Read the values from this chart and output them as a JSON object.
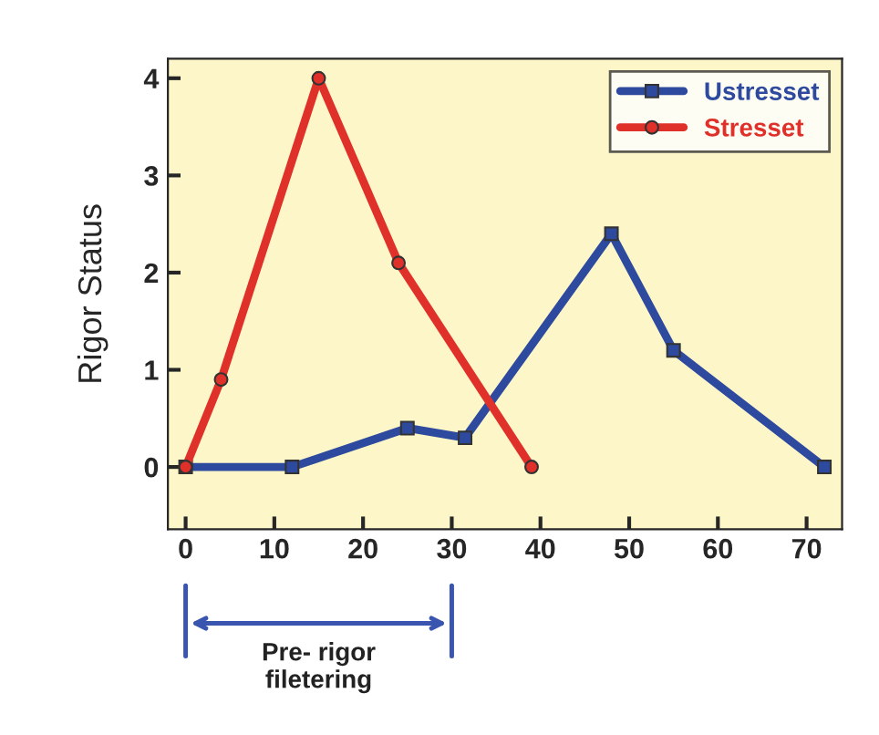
{
  "chart_data": {
    "type": "line",
    "ylabel": "Rigor Status",
    "xlim": [
      -2,
      74
    ],
    "ylim": [
      -0.64,
      4.2
    ],
    "xticks": [
      0,
      10,
      20,
      30,
      40,
      50,
      60,
      70
    ],
    "yticks": [
      0,
      1,
      2,
      3,
      4
    ],
    "series": [
      {
        "name": "Ustresset",
        "color": "#2e4a9e",
        "marker": "square",
        "x": [
          0,
          12,
          25,
          31.5,
          48,
          55,
          72
        ],
        "values": [
          0,
          0,
          0.4,
          0.3,
          2.4,
          1.2,
          0
        ]
      },
      {
        "name": "Stresset",
        "color": "#e0302a",
        "marker": "circle",
        "x": [
          0,
          4,
          15,
          24,
          39
        ],
        "values": [
          0,
          0.9,
          4,
          2.1,
          0
        ]
      }
    ],
    "annotations": [
      "Pre- rigor\nfiletering"
    ],
    "legend": "top right",
    "grid": false,
    "line_style": "solid"
  }
}
